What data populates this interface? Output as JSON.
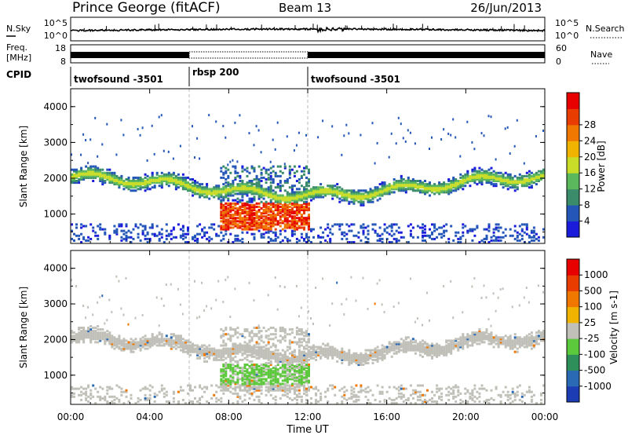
{
  "header": {
    "title": "Prince George (fitACF)",
    "beam": "Beam 13",
    "date": "26/Jun/2013"
  },
  "noise_panel": {
    "left_label": "N.Sky",
    "left_tick_top": "10^5",
    "left_tick_bottom": "10^0",
    "right_label": "N.Search",
    "right_tick_top": "10^5",
    "right_tick_bottom": "10^0"
  },
  "freq_panel": {
    "left_label_line1": "Freq.",
    "left_label_line2": "[MHz]",
    "left_tick_top": "18",
    "left_tick_bottom": "8",
    "right_label": "Nave",
    "right_tick_top": "60",
    "right_tick_bottom": "0"
  },
  "cpid_panel": {
    "label": "CPID",
    "segments": [
      {
        "text": "twofsound -3501",
        "start_hour": 0,
        "end_hour": 6
      },
      {
        "text": "rbsp 200",
        "start_hour": 6,
        "end_hour": 12
      },
      {
        "text": "twofsound -3501",
        "start_hour": 12,
        "end_hour": 24
      }
    ]
  },
  "x_axis": {
    "label": "Time UT",
    "ticks": [
      "00:00",
      "04:00",
      "08:00",
      "12:00",
      "16:00",
      "20:00",
      "00:00"
    ]
  },
  "chart_data": [
    {
      "type": "heatmap",
      "quantity": "power",
      "ylabel": "Slant Range [km]",
      "xlim_hours": [
        0,
        24
      ],
      "ylim_km": [
        180,
        4500
      ],
      "yticks": [
        "1000",
        "2000",
        "3000",
        "4000"
      ],
      "colorbar": {
        "label": "Power [dB]",
        "tick_labels": [
          "4",
          "8",
          "12",
          "16",
          "20",
          "24",
          "28"
        ],
        "range": [
          0,
          30
        ],
        "colors": [
          "#1b1bdc",
          "#2456b8",
          "#3a8c6a",
          "#5cb85c",
          "#c8dc28",
          "#f0b400",
          "#f07800",
          "#e83c00",
          "#e80000"
        ]
      }
    },
    {
      "type": "heatmap",
      "quantity": "velocity",
      "ylabel": "Slant Range [km]",
      "xlim_hours": [
        0,
        24
      ],
      "ylim_km": [
        180,
        4500
      ],
      "yticks": [
        "1000",
        "2000",
        "3000",
        "4000"
      ],
      "colorbar": {
        "label": "Velocity [m s-1]",
        "tick_labels": [
          "1000",
          "500",
          "100",
          "25",
          "-25",
          "-100",
          "-500",
          "-1000"
        ],
        "range": [
          -1000,
          1000
        ],
        "colors": [
          "#1c3cb4",
          "#2a6ab4",
          "#2f8f5a",
          "#5cc83c",
          "#c0c0b8",
          "#f0b400",
          "#f07800",
          "#e83c00",
          "#e80000"
        ]
      }
    }
  ]
}
